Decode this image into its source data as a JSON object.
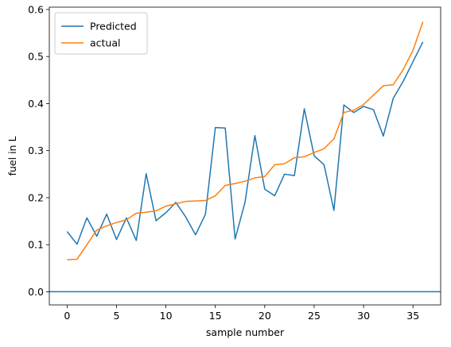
{
  "chart_data": {
    "type": "line",
    "title": "",
    "xlabel": "sample number",
    "ylabel": "fuel in L",
    "xlim": [
      -1.8,
      37.8
    ],
    "ylim": [
      -0.028,
      0.605
    ],
    "xticks": [
      0,
      5,
      10,
      15,
      20,
      25,
      30,
      35
    ],
    "xtick_labels": [
      "0",
      "5",
      "10",
      "15",
      "20",
      "25",
      "30",
      "35"
    ],
    "yticks": [
      0.0,
      0.1,
      0.2,
      0.3,
      0.4,
      0.5,
      0.6
    ],
    "ytick_labels": [
      "0.0",
      "0.1",
      "0.2",
      "0.3",
      "0.4",
      "0.5",
      "0.6"
    ],
    "grid": false,
    "legend_position": "upper-left",
    "hline": {
      "y": 0.0,
      "color": "#1f77b4"
    },
    "x": [
      0,
      1,
      2,
      3,
      4,
      5,
      6,
      7,
      8,
      9,
      10,
      11,
      12,
      13,
      14,
      15,
      16,
      17,
      18,
      19,
      20,
      21,
      22,
      23,
      24,
      25,
      26,
      27,
      28,
      29,
      30,
      31,
      32,
      33,
      34,
      35,
      36
    ],
    "series": [
      {
        "name": "Predicted",
        "color": "#1f77b4",
        "values": [
          0.128,
          0.101,
          0.157,
          0.118,
          0.165,
          0.111,
          0.157,
          0.109,
          0.251,
          0.151,
          0.168,
          0.19,
          0.159,
          0.121,
          0.165,
          0.349,
          0.348,
          0.112,
          0.19,
          0.332,
          0.218,
          0.204,
          0.25,
          0.247,
          0.389,
          0.289,
          0.27,
          0.173,
          0.397,
          0.381,
          0.394,
          0.387,
          0.331,
          0.411,
          0.447,
          0.489,
          0.531
        ]
      },
      {
        "name": "actual",
        "color": "#ff7f0e",
        "values": [
          0.068,
          0.069,
          0.1,
          0.131,
          0.14,
          0.147,
          0.153,
          0.167,
          0.169,
          0.172,
          0.182,
          0.187,
          0.192,
          0.193,
          0.194,
          0.204,
          0.226,
          0.23,
          0.235,
          0.242,
          0.245,
          0.27,
          0.272,
          0.285,
          0.287,
          0.296,
          0.304,
          0.325,
          0.381,
          0.386,
          0.398,
          0.418,
          0.438,
          0.44,
          0.472,
          0.513,
          0.574
        ]
      }
    ]
  }
}
